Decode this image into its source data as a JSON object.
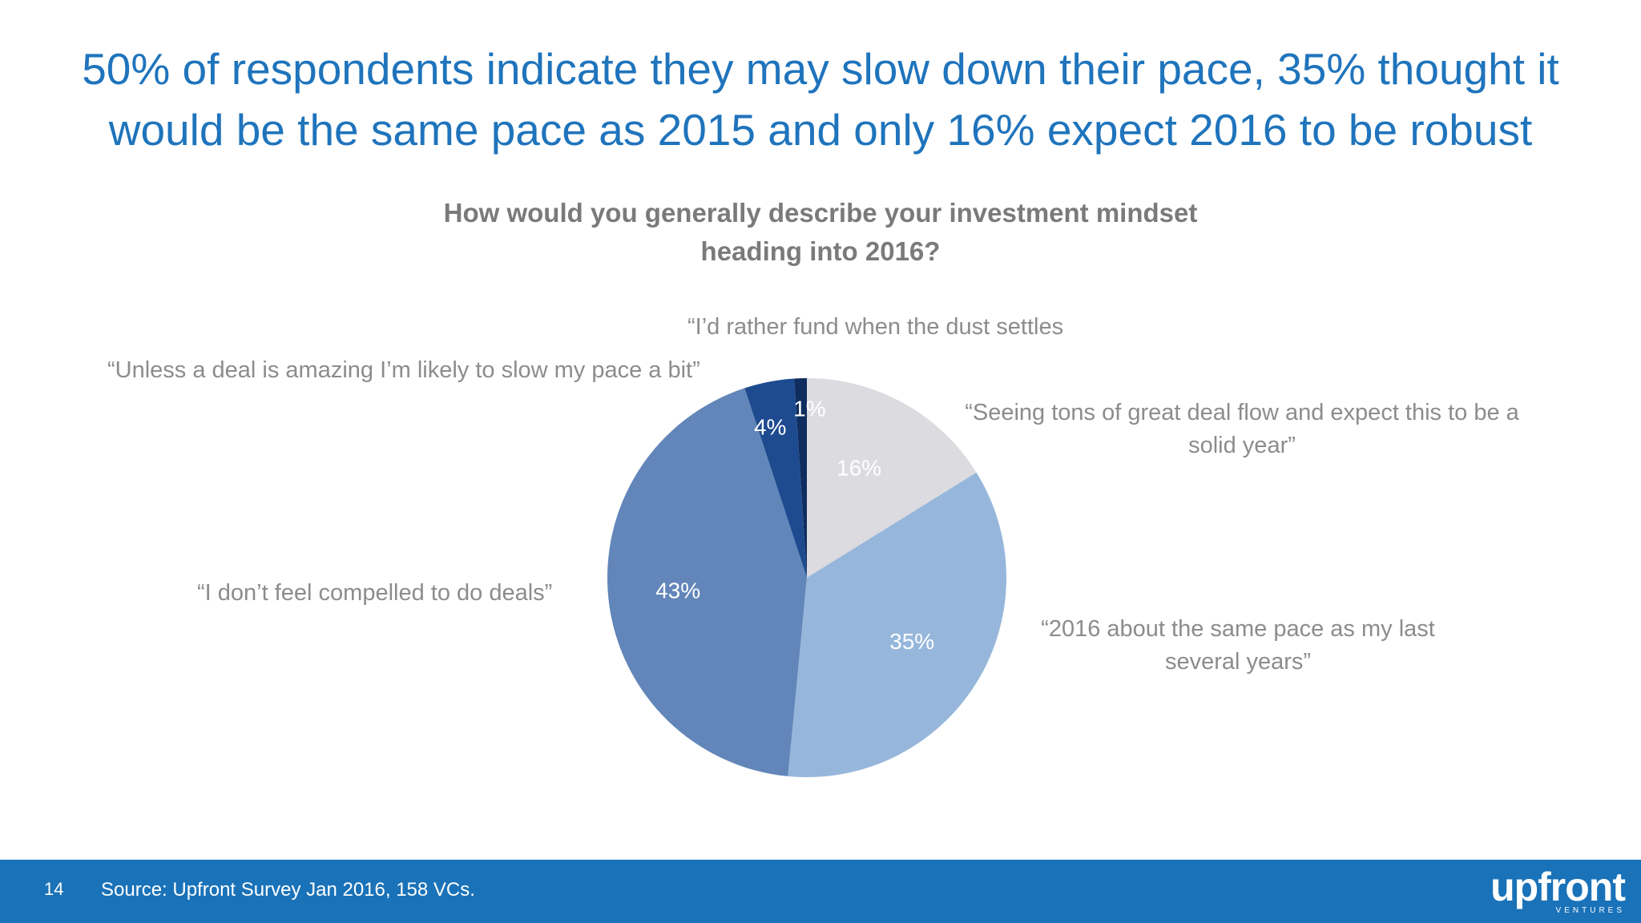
{
  "headline": "50% of respondents indicate they may slow down their pace, 35% thought it would be the same pace as 2015 and only 16% expect 2016 to be robust",
  "chart_data": {
    "type": "pie",
    "title": "How would you generally describe your investment mindset heading into 2016?",
    "slices": [
      {
        "label": "“Seeing tons of great deal flow and expect this to be a solid year”",
        "value": 16,
        "value_label": "16%",
        "color": "#dcdbe0"
      },
      {
        "label": "“2016 about the same pace as my last several years”",
        "value": 35,
        "value_label": "35%",
        "color": "#96b7db"
      },
      {
        "label": "“I don’t feel compelled to do deals”",
        "value": 43,
        "value_label": "43%",
        "color": "#6286b9"
      },
      {
        "label": "“Unless a deal is amazing I’m likely to slow my pace a bit”",
        "value": 4,
        "value_label": "4%",
        "color": "#1e4b8f"
      },
      {
        "label": "“I’d rather fund when the dust settles",
        "value": 1,
        "value_label": "1%",
        "color": "#0f2d5e"
      }
    ]
  },
  "footer": {
    "page_number": "14",
    "source": "Source: Upfront Survey Jan 2016, 158 VCs.",
    "logo_text": "upfront",
    "logo_subtext": "VENTURES",
    "background_color": "#1a72b8"
  },
  "colors": {
    "headline": "#1f74bc",
    "title": "#7a7a7a",
    "callout": "#8c8c8c"
  }
}
